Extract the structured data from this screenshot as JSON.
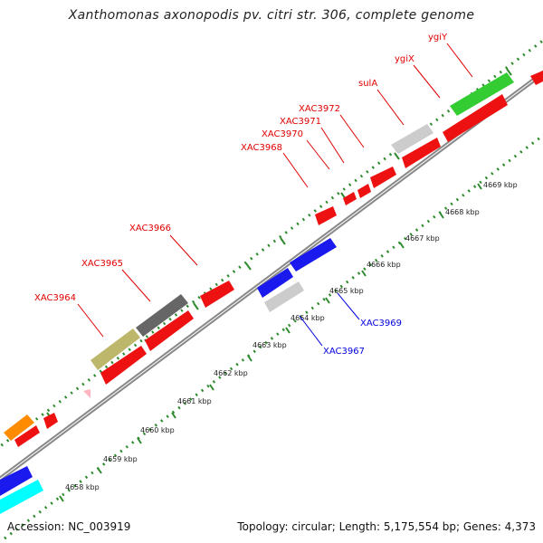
{
  "title": "Xanthomonas axonopodis pv. citri str. 306, complete genome",
  "footer": {
    "accession": "Accession: NC_003919",
    "info": "Topology: circular; Length: 5,175,554 bp; Genes: 4,373"
  },
  "colors": {
    "backbone": "#888888",
    "tick": "#2e8b2e",
    "forward_label": "#e00000",
    "reverse_label": "#0000dd"
  },
  "scale_labels": [
    "4658 kbp",
    "4659 kbp",
    "4660 kbp",
    "4661 kbp",
    "4662 kbp",
    "4663 kbp",
    "4664 kbp",
    "4665 kbp",
    "4666 kbp",
    "4667 kbp",
    "4668 kbp",
    "4669 kbp"
  ],
  "genes": [
    {
      "name": "XAC3964",
      "strand": "forward"
    },
    {
      "name": "XAC3965",
      "strand": "forward"
    },
    {
      "name": "XAC3966",
      "strand": "forward"
    },
    {
      "name": "XAC3967",
      "strand": "reverse"
    },
    {
      "name": "XAC3968",
      "strand": "forward"
    },
    {
      "name": "XAC3969",
      "strand": "reverse"
    },
    {
      "name": "XAC3970",
      "strand": "forward"
    },
    {
      "name": "XAC3971",
      "strand": "forward"
    },
    {
      "name": "XAC3972",
      "strand": "forward"
    },
    {
      "name": "sulA",
      "strand": "forward"
    },
    {
      "name": "ygiX",
      "strand": "forward"
    },
    {
      "name": "ygiY",
      "strand": "forward"
    }
  ]
}
